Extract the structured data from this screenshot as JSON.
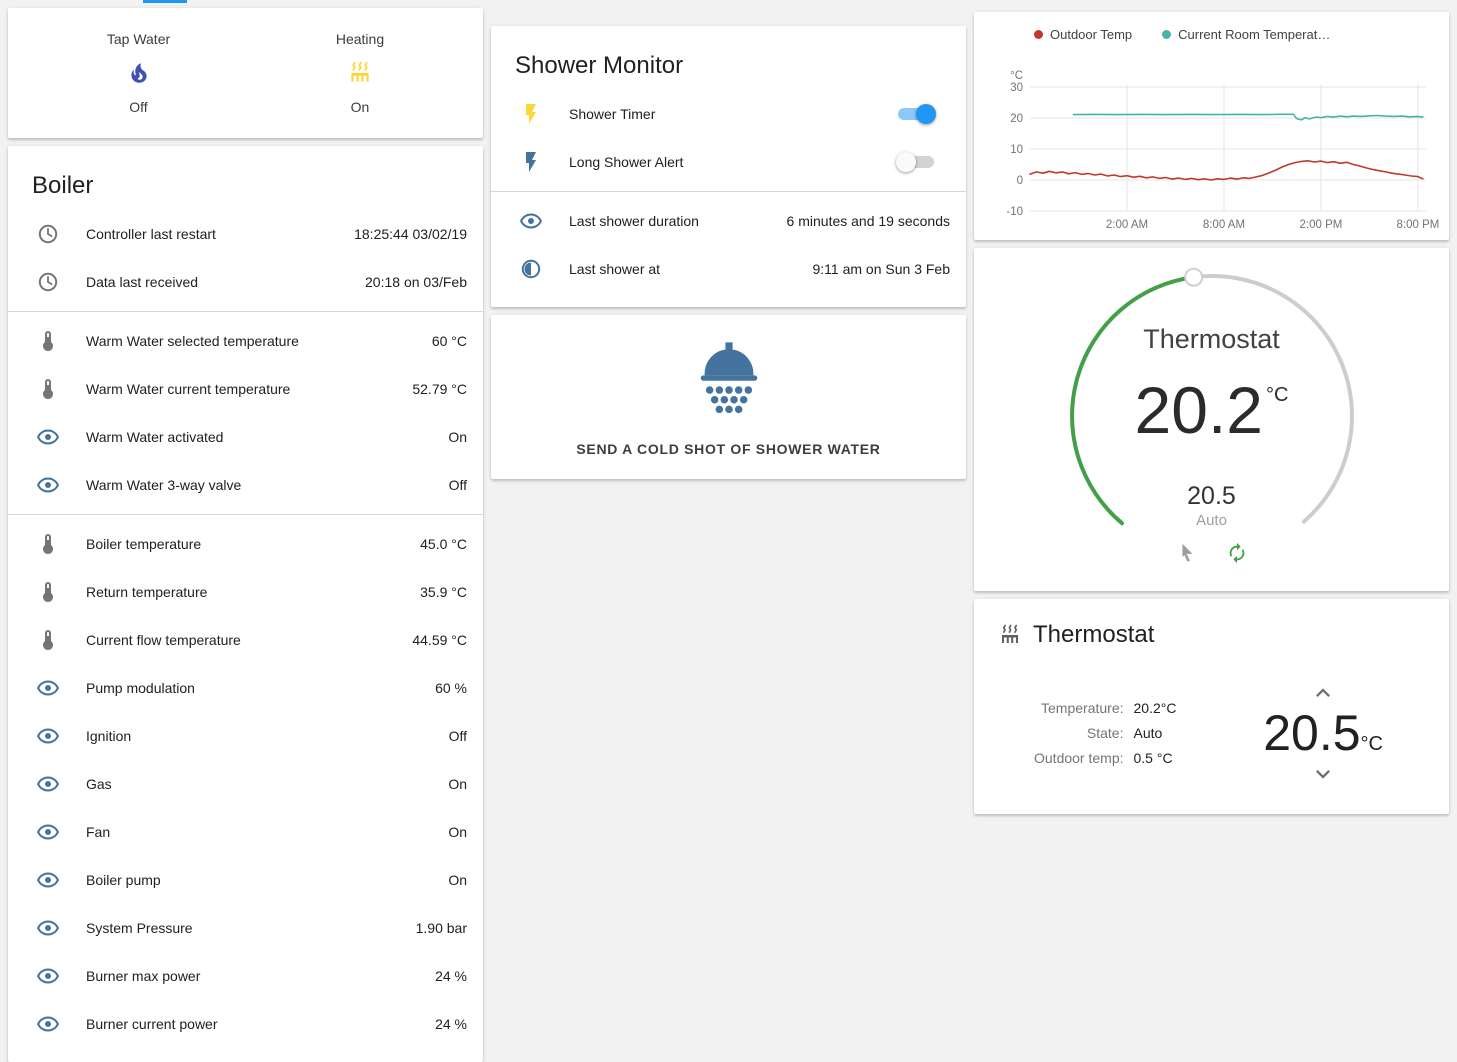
{
  "colors": {
    "accent": "#2196f3",
    "icon_gray": "#757575",
    "icon_blue": "#44739e",
    "tap_water_icon": "#3f51b5",
    "heating_icon": "#fdd835",
    "dial_green": "#43a047",
    "dial_track": "#cdcdcd"
  },
  "glance": {
    "items": [
      {
        "label": "Tap Water",
        "icon": "fire",
        "state": "Off"
      },
      {
        "label": "Heating",
        "icon": "radiator",
        "state": "On"
      }
    ]
  },
  "boiler": {
    "title": "Boiler",
    "sections": [
      {
        "rows": [
          {
            "icon": "clock",
            "label": "Controller last restart",
            "value": "18:25:44 03/02/19"
          },
          {
            "icon": "clock",
            "label": "Data last received",
            "value": "20:18 on 03/Feb"
          }
        ]
      },
      {
        "rows": [
          {
            "icon": "thermometer",
            "label": "Warm Water selected temperature",
            "value": "60 °C"
          },
          {
            "icon": "thermometer",
            "label": "Warm Water current temperature",
            "value": "52.79 °C"
          },
          {
            "icon": "eye",
            "label": "Warm Water activated",
            "value": "On"
          },
          {
            "icon": "eye",
            "label": "Warm Water 3-way valve",
            "value": "Off"
          }
        ]
      },
      {
        "rows": [
          {
            "icon": "thermometer",
            "label": "Boiler temperature",
            "value": "45.0 °C"
          },
          {
            "icon": "thermometer",
            "label": "Return temperature",
            "value": "35.9 °C"
          },
          {
            "icon": "thermometer",
            "label": "Current flow temperature",
            "value": "44.59 °C"
          },
          {
            "icon": "eye",
            "label": "Pump modulation",
            "value": "60 %"
          },
          {
            "icon": "eye",
            "label": "Ignition",
            "value": "Off"
          },
          {
            "icon": "eye",
            "label": "Gas",
            "value": "On"
          },
          {
            "icon": "eye",
            "label": "Fan",
            "value": "On"
          },
          {
            "icon": "eye",
            "label": "Boiler pump",
            "value": "On"
          },
          {
            "icon": "eye",
            "label": "System Pressure",
            "value": "1.90 bar"
          },
          {
            "icon": "eye",
            "label": "Burner max power",
            "value": "24 %"
          },
          {
            "icon": "eye",
            "label": "Burner current power",
            "value": "24 %"
          }
        ]
      }
    ]
  },
  "shower_monitor": {
    "title": "Shower Monitor",
    "toggles": [
      {
        "icon": "flash",
        "icon_color": "#fdd835",
        "label": "Shower Timer",
        "state": "on"
      },
      {
        "icon": "flash",
        "icon_color": "#44739e",
        "label": "Long Shower Alert",
        "state": "off"
      }
    ],
    "info": [
      {
        "icon": "eye",
        "label": "Last shower duration",
        "value": "6 minutes and 19 seconds"
      },
      {
        "icon": "timer",
        "label": "Last shower at",
        "value": "9:11 am on Sun 3 Feb"
      }
    ]
  },
  "cold_shot": {
    "icon": "shower",
    "button_label": "SEND A COLD SHOT OF SHOWER WATER"
  },
  "chart_data": {
    "type": "line",
    "y_unit": "°C",
    "y_ticks": [
      30,
      20,
      10,
      0,
      -10
    ],
    "ylim": [
      -13,
      32
    ],
    "x_ticks": [
      {
        "label": "2:00 AM",
        "t": 6
      },
      {
        "label": "8:00 AM",
        "t": 12
      },
      {
        "label": "2:00 PM",
        "t": 18
      },
      {
        "label": "8:00 PM",
        "t": 24
      }
    ],
    "x_range_hours": [
      0,
      24.5
    ],
    "grid": true,
    "legend_position": "top",
    "series": [
      {
        "name": "Outdoor Temp",
        "color": "#c0392b",
        "points": [
          [
            0,
            1.9
          ],
          [
            0.4,
            2.6
          ],
          [
            0.8,
            2.2
          ],
          [
            1.2,
            2.8
          ],
          [
            1.6,
            2.3
          ],
          [
            2,
            2.6
          ],
          [
            2.4,
            2.0
          ],
          [
            2.8,
            2.4
          ],
          [
            3.2,
            1.8
          ],
          [
            3.6,
            2.1
          ],
          [
            4,
            1.6
          ],
          [
            4.4,
            1.9
          ],
          [
            4.8,
            1.3
          ],
          [
            5.2,
            1.6
          ],
          [
            5.6,
            1.1
          ],
          [
            6,
            1.4
          ],
          [
            6.4,
            0.9
          ],
          [
            6.8,
            1.2
          ],
          [
            7.2,
            0.7
          ],
          [
            7.6,
            1.0
          ],
          [
            8,
            0.5
          ],
          [
            8.4,
            0.8
          ],
          [
            8.8,
            0.3
          ],
          [
            9.2,
            0.6
          ],
          [
            9.6,
            0.2
          ],
          [
            10,
            0.5
          ],
          [
            10.4,
            0.1
          ],
          [
            10.8,
            0.4
          ],
          [
            11.2,
            0.0
          ],
          [
            11.6,
            0.4
          ],
          [
            12,
            0.2
          ],
          [
            12.4,
            0.6
          ],
          [
            12.8,
            0.3
          ],
          [
            13.2,
            0.7
          ],
          [
            13.6,
            0.5
          ],
          [
            14,
            1.0
          ],
          [
            14.4,
            1.5
          ],
          [
            14.8,
            2.3
          ],
          [
            15.2,
            3.2
          ],
          [
            15.6,
            4.2
          ],
          [
            16,
            5.0
          ],
          [
            16.4,
            5.6
          ],
          [
            16.8,
            6.0
          ],
          [
            17.2,
            6.2
          ],
          [
            17.6,
            5.8
          ],
          [
            18,
            6.1
          ],
          [
            18.4,
            5.6
          ],
          [
            18.8,
            5.9
          ],
          [
            19.2,
            5.4
          ],
          [
            19.6,
            5.7
          ],
          [
            20,
            5.0
          ],
          [
            20.4,
            4.5
          ],
          [
            20.8,
            3.9
          ],
          [
            21.2,
            3.4
          ],
          [
            21.6,
            3.0
          ],
          [
            22,
            2.6
          ],
          [
            22.4,
            2.2
          ],
          [
            22.8,
            1.9
          ],
          [
            23.2,
            1.6
          ],
          [
            23.6,
            1.3
          ],
          [
            24,
            1.1
          ],
          [
            24.3,
            0.4
          ]
        ]
      },
      {
        "name": "Current Room Temperat…",
        "color": "#45b3ad",
        "points": [
          [
            2.7,
            21.1
          ],
          [
            4,
            21.15
          ],
          [
            5.5,
            21.1
          ],
          [
            7,
            21.15
          ],
          [
            8.5,
            21.1
          ],
          [
            10,
            21.15
          ],
          [
            11.5,
            21.1
          ],
          [
            13,
            21.15
          ],
          [
            14.5,
            21.1
          ],
          [
            15.5,
            21.2
          ],
          [
            16.3,
            21.2
          ],
          [
            16.5,
            19.8
          ],
          [
            16.8,
            19.4
          ],
          [
            17,
            20.1
          ],
          [
            17.3,
            19.7
          ],
          [
            17.7,
            20.3
          ],
          [
            18,
            20.1
          ],
          [
            18.4,
            20.5
          ],
          [
            18.8,
            20.3
          ],
          [
            19.2,
            20.6
          ],
          [
            19.6,
            20.4
          ],
          [
            20,
            20.6
          ],
          [
            20.5,
            20.5
          ],
          [
            21,
            20.7
          ],
          [
            21.5,
            20.8
          ],
          [
            22,
            20.6
          ],
          [
            22.5,
            20.5
          ],
          [
            23,
            20.6
          ],
          [
            23.5,
            20.4
          ],
          [
            24,
            20.5
          ],
          [
            24.3,
            20.3
          ]
        ]
      }
    ]
  },
  "dial": {
    "title": "Thermostat",
    "current_temp": "20.2",
    "unit": "°C",
    "target_temp": "20.5",
    "mode": "Auto"
  },
  "climate": {
    "title": "Thermostat",
    "icon": "radiator",
    "rows": [
      {
        "label": "Temperature:",
        "value": "20.2°C"
      },
      {
        "label": "State:",
        "value": "Auto"
      },
      {
        "label": "Outdoor temp:",
        "value": "0.5 °C"
      }
    ],
    "target": {
      "value": "20.5",
      "unit": "°C"
    }
  }
}
